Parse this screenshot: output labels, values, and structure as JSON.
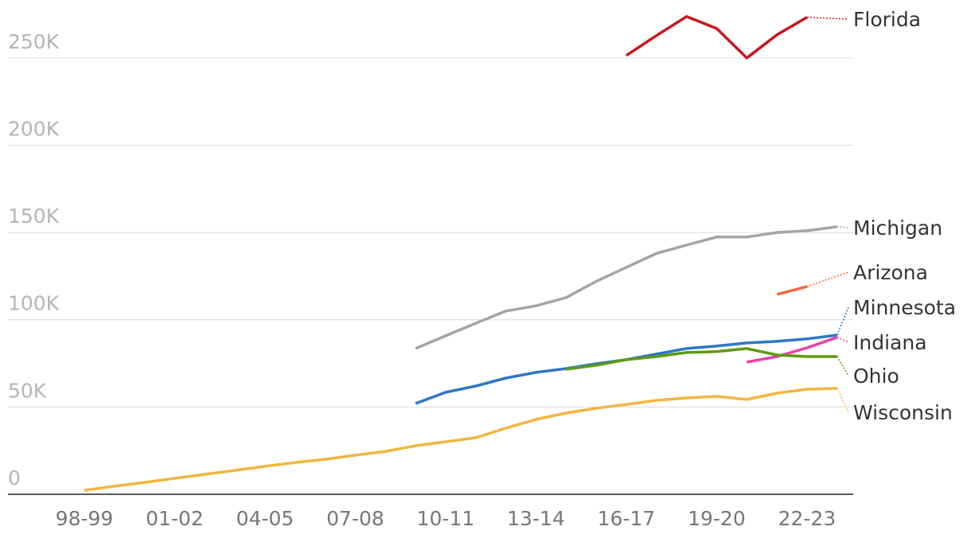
{
  "chart_data": {
    "type": "line",
    "categories": [
      "98-99",
      null,
      null,
      "01-02",
      null,
      null,
      "04-05",
      null,
      null,
      "07-08",
      null,
      null,
      "10-11",
      null,
      null,
      "13-14",
      null,
      null,
      "16-17",
      null,
      null,
      "19-20",
      null,
      null,
      "22-23",
      null
    ],
    "ylim": [
      0,
      280000
    ],
    "yticks": [
      0,
      {
        "value": 50000,
        "label": "50K"
      },
      {
        "value": 100000,
        "label": "100K"
      },
      {
        "value": 150000,
        "label": "150K"
      },
      {
        "value": 200000,
        "label": "200K"
      },
      {
        "value": 250000,
        "label": "250K"
      }
    ],
    "grid": true,
    "series": [
      {
        "name": "Florida",
        "color": "#c8161d",
        "values": [
          null,
          null,
          null,
          null,
          null,
          null,
          null,
          null,
          null,
          null,
          null,
          null,
          null,
          null,
          null,
          null,
          null,
          null,
          251400,
          262800,
          273700,
          266900,
          250000,
          263200,
          273300,
          null
        ]
      },
      {
        "name": "Michigan",
        "color": "#a8a3a3",
        "values": [
          null,
          null,
          null,
          null,
          null,
          null,
          null,
          null,
          null,
          null,
          null,
          83500,
          90800,
          98000,
          105000,
          108000,
          112700,
          122000,
          130000,
          138000,
          142800,
          147400,
          147400,
          150000,
          151000,
          153300
        ]
      },
      {
        "name": "Arizona",
        "color": "#f4673a",
        "values": [
          null,
          null,
          null,
          null,
          null,
          null,
          null,
          null,
          null,
          null,
          null,
          null,
          null,
          null,
          null,
          null,
          null,
          null,
          null,
          null,
          null,
          null,
          null,
          114500,
          119000,
          null
        ]
      },
      {
        "name": "Minnesota",
        "color": "#2f77c4",
        "values": [
          null,
          null,
          null,
          null,
          null,
          null,
          null,
          null,
          null,
          null,
          null,
          52000,
          58400,
          62000,
          66600,
          69800,
          72000,
          74800,
          77100,
          80300,
          83500,
          84900,
          86700,
          87600,
          89000,
          91200
        ]
      },
      {
        "name": "Indiana",
        "color": "#ee3fa6",
        "values": [
          null,
          null,
          null,
          null,
          null,
          null,
          null,
          null,
          null,
          null,
          null,
          null,
          null,
          null,
          null,
          null,
          null,
          null,
          null,
          null,
          null,
          null,
          75700,
          78900,
          83900,
          89900
        ]
      },
      {
        "name": "Ohio",
        "color": "#5c9a12",
        "values": [
          null,
          null,
          null,
          null,
          null,
          null,
          null,
          null,
          null,
          null,
          null,
          null,
          null,
          null,
          null,
          null,
          71600,
          73900,
          77100,
          78900,
          81200,
          81700,
          83500,
          79800,
          78900,
          78900
        ]
      },
      {
        "name": "Wisconsin",
        "color": "#f2b640",
        "values": [
          2300,
          4600,
          6800,
          9100,
          11400,
          13700,
          16000,
          18200,
          20000,
          22400,
          24600,
          27800,
          30100,
          32400,
          37900,
          42900,
          46500,
          49300,
          51500,
          53800,
          55200,
          56100,
          54300,
          57900,
          60200,
          60700
        ]
      }
    ]
  }
}
